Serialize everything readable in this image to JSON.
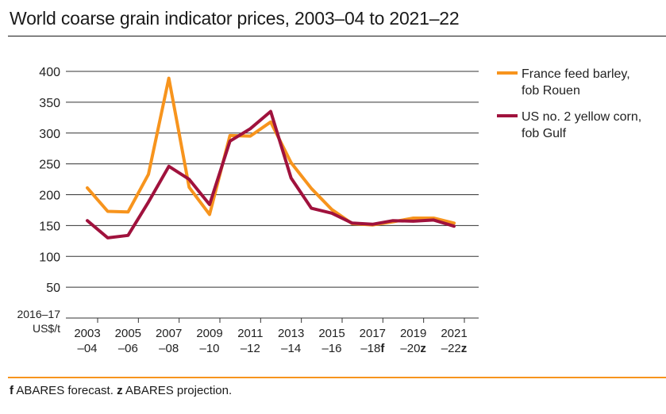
{
  "title": "World coarse grain indicator prices, 2003–04 to 2021–22",
  "footnote": {
    "f_marker": "f",
    "f_text": " ABARES forecast. ",
    "z_marker": "z",
    "z_text": " ABARES projection."
  },
  "colors": {
    "barley": "#f7941d",
    "corn": "#a0123d",
    "grid": "#333333",
    "footer_rule": "#f7941d"
  },
  "chart_data": {
    "type": "line",
    "title": "World coarse grain indicator prices, 2003–04 to 2021–22",
    "ylabel": [
      "2016–17",
      "US$/t"
    ],
    "ylim": [
      0,
      400
    ],
    "yticks": [
      50,
      100,
      150,
      200,
      250,
      300,
      350,
      400
    ],
    "grid": true,
    "legend_position": "right",
    "x": [
      "2003–04",
      "2004–05",
      "2005–06",
      "2006–07",
      "2007–08",
      "2008–09",
      "2009–10",
      "2010–11",
      "2011–12",
      "2012–13",
      "2013–14",
      "2014–15",
      "2015–16",
      "2016–17",
      "2017–18",
      "2018–19",
      "2019–20",
      "2020–21",
      "2021–22"
    ],
    "xtick_labels": [
      {
        "top": "2003",
        "bottom": "–04",
        "suffix": ""
      },
      {
        "top": "2005",
        "bottom": "–06",
        "suffix": ""
      },
      {
        "top": "2007",
        "bottom": "–08",
        "suffix": ""
      },
      {
        "top": "2009",
        "bottom": "–10",
        "suffix": ""
      },
      {
        "top": "2011",
        "bottom": "–12",
        "suffix": ""
      },
      {
        "top": "2013",
        "bottom": "–14",
        "suffix": ""
      },
      {
        "top": "2015",
        "bottom": "–16",
        "suffix": ""
      },
      {
        "top": "2017",
        "bottom": "–18",
        "suffix": "f"
      },
      {
        "top": "2019",
        "bottom": "–20",
        "suffix": "z"
      },
      {
        "top": "2021",
        "bottom": "–22",
        "suffix": "z"
      }
    ],
    "series": [
      {
        "name": "France feed barley, fob Rouen",
        "legend_lines": [
          "France feed barley,",
          "fob Rouen"
        ],
        "color": "#f7941d",
        "values": [
          211,
          173,
          172,
          233,
          389,
          212,
          168,
          296,
          295,
          318,
          252,
          210,
          176,
          153,
          151,
          156,
          162,
          162,
          154
        ]
      },
      {
        "name": "US no. 2 yellow corn, fob Gulf",
        "legend_lines": [
          "US no. 2 yellow corn,",
          "fob Gulf"
        ],
        "color": "#a0123d",
        "values": [
          158,
          130,
          134,
          188,
          246,
          225,
          184,
          287,
          307,
          335,
          227,
          178,
          170,
          154,
          152,
          158,
          157,
          159,
          149
        ]
      }
    ]
  }
}
